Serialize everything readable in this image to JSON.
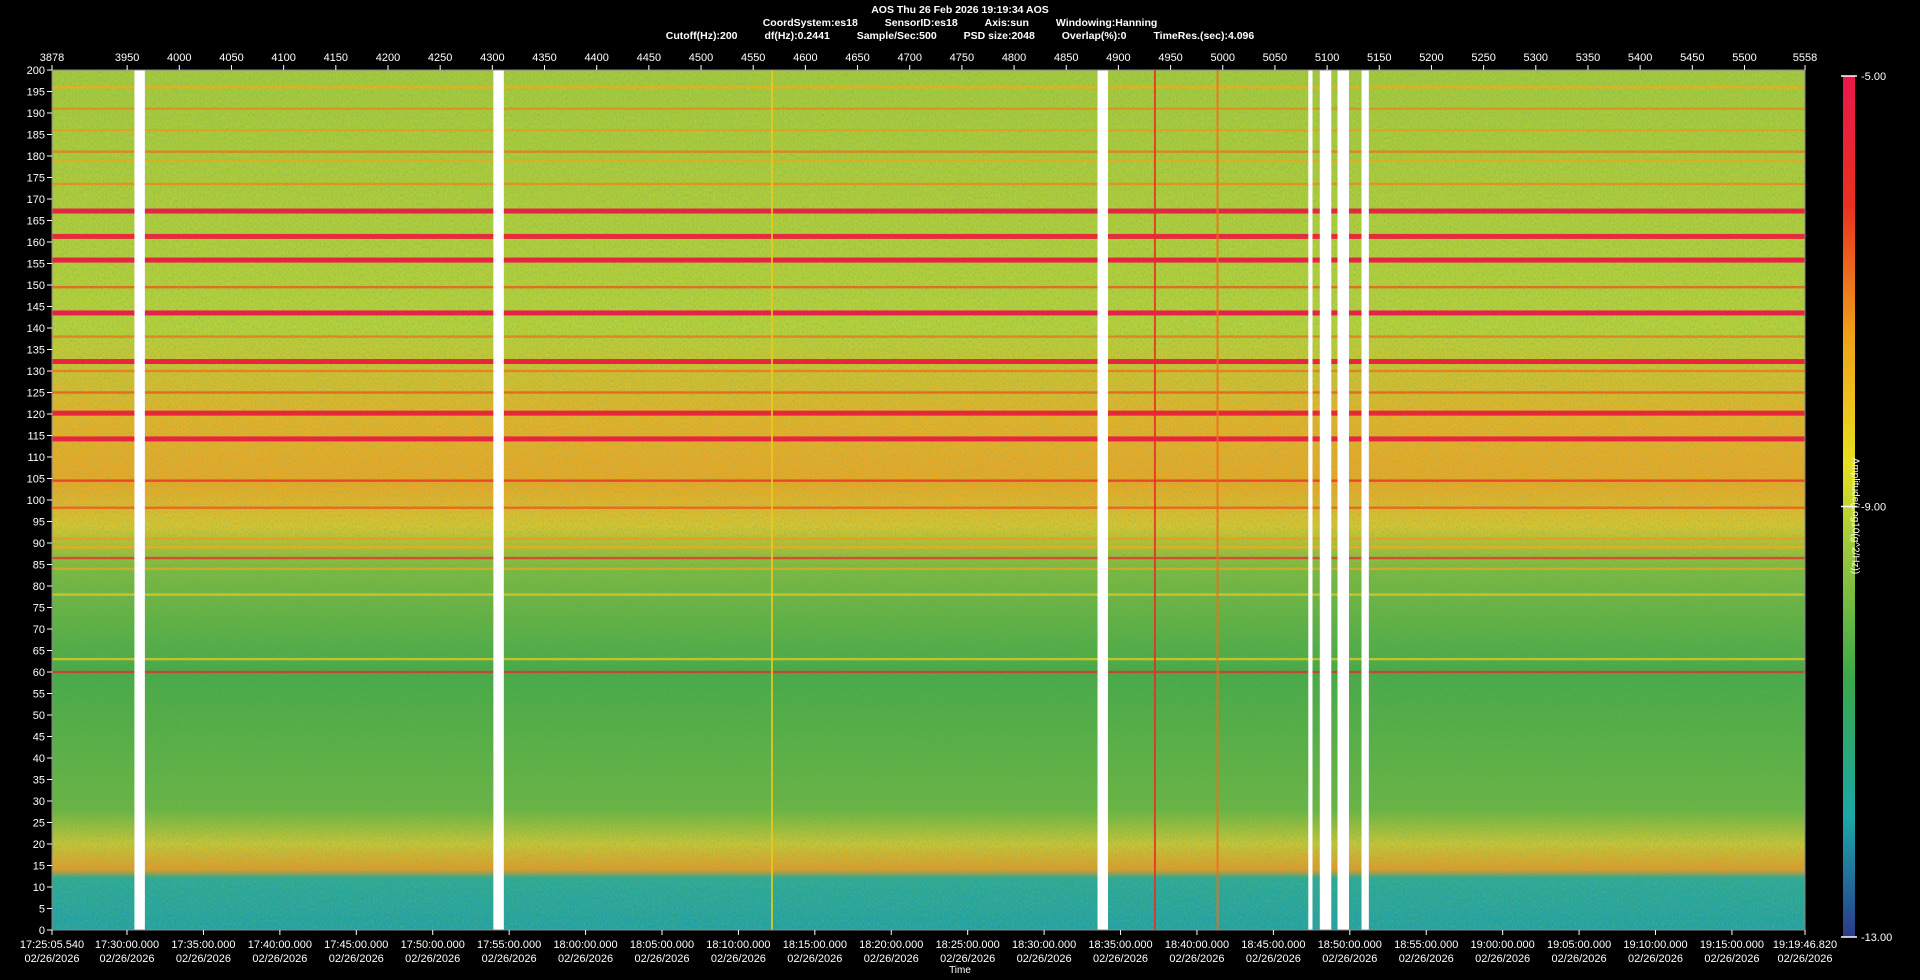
{
  "header": {
    "line1": "AOS  Thu 26 Feb 2026 19:19:34  AOS",
    "line2": [
      "CoordSystem:es18",
      "SensorID:es18",
      "Axis:sun",
      "Windowing:Hanning"
    ],
    "line3": [
      "Cutoff(Hz):200",
      "df(Hz):0.2441",
      "Sample/Sec:500",
      "PSD size:2048",
      "Overlap(%):0",
      "TimeRes.(sec):4.096"
    ]
  },
  "chart_data": {
    "type": "heatmap",
    "title": "AOS  Thu 26 Feb 2026 19:19:34  AOS",
    "xlabel": "Time",
    "ylabel": "",
    "colorbar_label": "Amplitude(Log10(g^2/Hz))",
    "colorbar_ticks": [
      "-5.00",
      "-9.00",
      "-13.00"
    ],
    "colorbar_range": [
      -13.0,
      -5.0
    ],
    "colormap": [
      "#2a3a8a",
      "#1aa8a8",
      "#3aa84a",
      "#9ac83a",
      "#e8e020",
      "#f0a018",
      "#e83020",
      "#e8184a"
    ],
    "ylim": [
      0,
      200
    ],
    "yticks": [
      0,
      5,
      10,
      15,
      20,
      25,
      30,
      35,
      40,
      45,
      50,
      55,
      60,
      65,
      70,
      75,
      80,
      85,
      90,
      95,
      100,
      105,
      110,
      115,
      120,
      125,
      130,
      135,
      140,
      145,
      150,
      155,
      160,
      165,
      170,
      175,
      180,
      185,
      190,
      195,
      200
    ],
    "xlim_top": [
      3878,
      5558
    ],
    "top_ticks": [
      "3878",
      "3950",
      "4000",
      "4050",
      "4100",
      "4150",
      "4200",
      "4250",
      "4300",
      "4350",
      "4400",
      "4450",
      "4500",
      "4550",
      "4600",
      "4650",
      "4700",
      "4750",
      "4800",
      "4850",
      "4900",
      "4950",
      "5000",
      "5050",
      "5100",
      "5150",
      "5200",
      "5250",
      "5300",
      "5350",
      "5400",
      "5450",
      "5500",
      "5558"
    ],
    "bottom_ticks": [
      {
        "time": "17:25:05.540",
        "date": "02/26/2026"
      },
      {
        "time": "17:30:00.000",
        "date": "02/26/2026"
      },
      {
        "time": "17:35:00.000",
        "date": "02/26/2026"
      },
      {
        "time": "17:40:00.000",
        "date": "02/26/2026"
      },
      {
        "time": "17:45:00.000",
        "date": "02/26/2026"
      },
      {
        "time": "17:50:00.000",
        "date": "02/26/2026"
      },
      {
        "time": "17:55:00.000",
        "date": "02/26/2026"
      },
      {
        "time": "18:00:00.000",
        "date": "02/26/2026"
      },
      {
        "time": "18:05:00.000",
        "date": "02/26/2026"
      },
      {
        "time": "18:10:00.000",
        "date": "02/26/2026"
      },
      {
        "time": "18:15:00.000",
        "date": "02/26/2026"
      },
      {
        "time": "18:20:00.000",
        "date": "02/26/2026"
      },
      {
        "time": "18:25:00.000",
        "date": "02/26/2026"
      },
      {
        "time": "18:30:00.000",
        "date": "02/26/2026"
      },
      {
        "time": "18:35:00.000",
        "date": "02/26/2026"
      },
      {
        "time": "18:40:00.000",
        "date": "02/26/2026"
      },
      {
        "time": "18:45:00.000",
        "date": "02/26/2026"
      },
      {
        "time": "18:50:00.000",
        "date": "02/26/2026"
      },
      {
        "time": "18:55:00.000",
        "date": "02/26/2026"
      },
      {
        "time": "19:00:00.000",
        "date": "02/26/2026"
      },
      {
        "time": "19:05:00.000",
        "date": "02/26/2026"
      },
      {
        "time": "19:10:00.000",
        "date": "02/26/2026"
      },
      {
        "time": "19:15:00.000",
        "date": "02/26/2026"
      },
      {
        "time": "19:19:46.820",
        "date": "02/26/2026"
      }
    ],
    "data_gaps": [
      [
        3957,
        3967
      ],
      [
        4301,
        4311
      ],
      [
        4880,
        4890
      ],
      [
        5082,
        5086
      ],
      [
        5093,
        5104
      ],
      [
        5110,
        5121
      ],
      [
        5133,
        5140
      ]
    ],
    "frequency_bands": [
      {
        "hz": 196.0,
        "level": -7.5
      },
      {
        "hz": 191.0,
        "level": -7.0
      },
      {
        "hz": 186.0,
        "level": -7.2
      },
      {
        "hz": 181.0,
        "level": -6.8
      },
      {
        "hz": 179.0,
        "level": -7.4
      },
      {
        "hz": 173.5,
        "level": -7.0
      },
      {
        "hz": 167.2,
        "level": -5.2
      },
      {
        "hz": 161.3,
        "level": -5.5
      },
      {
        "hz": 155.8,
        "level": -5.1
      },
      {
        "hz": 149.5,
        "level": -6.5
      },
      {
        "hz": 143.5,
        "level": -5.0
      },
      {
        "hz": 138.0,
        "level": -6.8
      },
      {
        "hz": 132.2,
        "level": -5.3
      },
      {
        "hz": 130.0,
        "level": -6.8
      },
      {
        "hz": 125.0,
        "level": -6.5
      },
      {
        "hz": 120.2,
        "level": -5.4
      },
      {
        "hz": 114.2,
        "level": -5.2
      },
      {
        "hz": 104.5,
        "level": -5.8
      },
      {
        "hz": 98.2,
        "level": -6.5
      },
      {
        "hz": 91.0,
        "level": -7.2
      },
      {
        "hz": 89.0,
        "level": -7.5
      },
      {
        "hz": 86.5,
        "level": -6.0
      },
      {
        "hz": 84.0,
        "level": -7.4
      },
      {
        "hz": 78.0,
        "level": -8.0
      },
      {
        "hz": 63.0,
        "level": -8.0
      },
      {
        "hz": 60.0,
        "level": -5.8
      }
    ],
    "vertical_lines": [
      {
        "x": 4935,
        "level": -6.0
      },
      {
        "x": 4995,
        "level": -6.8
      },
      {
        "x": 4568,
        "level": -8.0
      }
    ]
  }
}
